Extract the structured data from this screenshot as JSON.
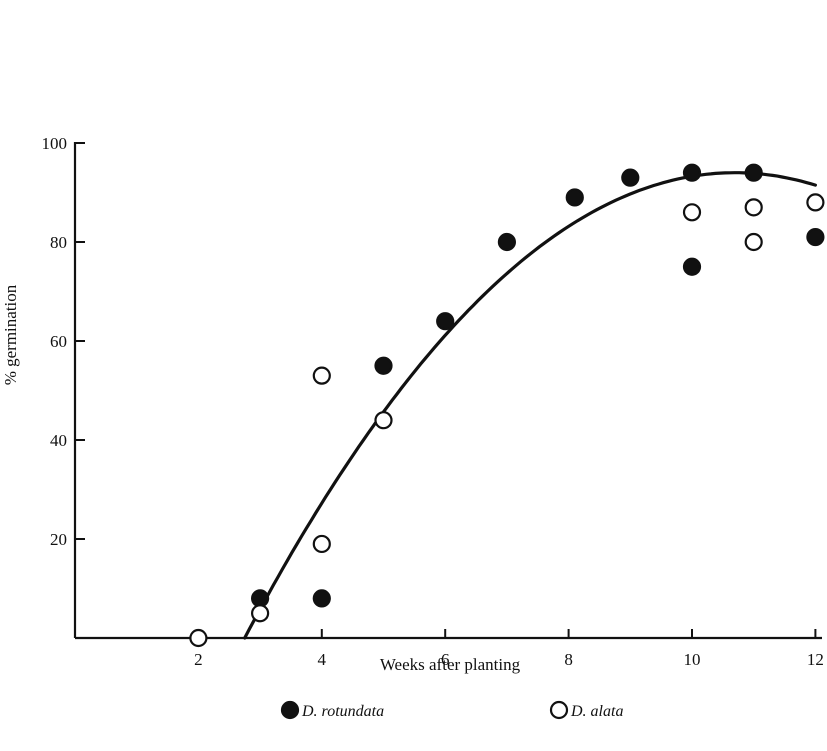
{
  "chart_data": {
    "type": "scatter",
    "title": "",
    "xlabel": "Weeks after planting",
    "ylabel": "% germination",
    "xlim": [
      0,
      12
    ],
    "ylim": [
      0,
      100
    ],
    "x_ticks": [
      2,
      4,
      6,
      8,
      10,
      12
    ],
    "y_ticks": [
      20,
      40,
      60,
      80,
      100
    ],
    "grid": false,
    "legend_position": "bottom-center",
    "series": [
      {
        "name": "D. rotundata",
        "marker": "filled-circle",
        "color": "#111111",
        "points": [
          {
            "x": 3,
            "y": 8
          },
          {
            "x": 4,
            "y": 8
          },
          {
            "x": 5,
            "y": 55
          },
          {
            "x": 6,
            "y": 64
          },
          {
            "x": 7,
            "y": 80
          },
          {
            "x": 8.1,
            "y": 89
          },
          {
            "x": 9,
            "y": 93
          },
          {
            "x": 10,
            "y": 94
          },
          {
            "x": 10,
            "y": 75
          },
          {
            "x": 11,
            "y": 94
          },
          {
            "x": 12,
            "y": 81
          }
        ]
      },
      {
        "name": "D. alata",
        "marker": "open-circle",
        "color": "#111111",
        "points": [
          {
            "x": 2,
            "y": 0
          },
          {
            "x": 3,
            "y": 5
          },
          {
            "x": 4,
            "y": 19
          },
          {
            "x": 4,
            "y": 53
          },
          {
            "x": 5,
            "y": 44
          },
          {
            "x": 10,
            "y": 86
          },
          {
            "x": 11,
            "y": 87
          },
          {
            "x": 11,
            "y": 80
          },
          {
            "x": 12,
            "y": 88
          }
        ]
      }
    ],
    "fit_curve": {
      "type": "quadratic",
      "x_start": 2.75,
      "x_end": 12,
      "x_vertex": 10.7,
      "y_max": 94,
      "y_at_start": 0
    }
  }
}
